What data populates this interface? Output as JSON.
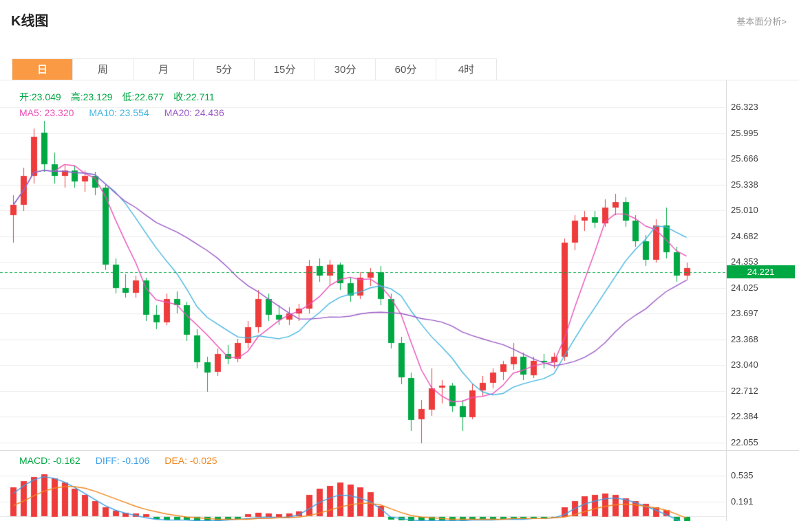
{
  "page": {
    "title": "K线图",
    "link_right": "基本面分析>"
  },
  "tabs": [
    {
      "label": "日",
      "active": true
    },
    {
      "label": "周",
      "active": false
    },
    {
      "label": "月",
      "active": false
    },
    {
      "label": "5分",
      "active": false
    },
    {
      "label": "15分",
      "active": false
    },
    {
      "label": "30分",
      "active": false
    },
    {
      "label": "60分",
      "active": false
    },
    {
      "label": "4时",
      "active": false
    }
  ],
  "kline": {
    "ohlc_legend": {
      "open": "开:23.049",
      "high": "高:23.129",
      "low": "低:22.677",
      "close": "收:22.711"
    },
    "ma_legend": {
      "ma5": "MA5: 23.320",
      "ma10": "MA10: 23.554",
      "ma20": "MA20: 24.436"
    },
    "current_price_label": "24.221",
    "y_axis_labels": [
      "26.323",
      "25.995",
      "25.666",
      "25.338",
      "25.010",
      "24.682",
      "24.353",
      "24.025",
      "23.697",
      "23.368",
      "23.040",
      "22.712",
      "22.384",
      "22.055"
    ]
  },
  "macd_panel": {
    "legend": {
      "macd": "MACD: -0.162",
      "diff": "DIFF: -0.106",
      "dea": "DEA: -0.025"
    },
    "y_axis_labels": [
      "0.535",
      "0.191"
    ]
  },
  "colors": {
    "up": "#ee3b3b",
    "down": "#00a843",
    "green_text": "#00a843",
    "ma5": "#ec4fb8",
    "ma10": "#45b5e0",
    "ma20": "#9b59c6",
    "diff": "#3d9fe8",
    "dea": "#f0871e",
    "grid": "#ececec",
    "accent_tab": "#fa9a45",
    "price_line": "#00a843"
  },
  "chart_data": [
    {
      "type": "candlestick",
      "title": "K线图 (日)",
      "y_ticks": [
        26.323,
        25.995,
        25.666,
        25.338,
        25.01,
        24.682,
        24.353,
        24.025,
        23.697,
        23.368,
        23.04,
        22.712,
        22.384,
        22.055
      ],
      "current_price": 24.221,
      "ma_periods": [
        5,
        10,
        20
      ],
      "legend_values": {
        "open": 23.049,
        "high": 23.129,
        "low": 22.677,
        "close": 22.711,
        "ma5": 23.32,
        "ma10": 23.554,
        "ma20": 24.436
      },
      "candles": [
        [
          24.95,
          25.2,
          24.6,
          25.08
        ],
        [
          25.08,
          25.55,
          25.0,
          25.45
        ],
        [
          25.45,
          26.05,
          25.35,
          25.95
        ],
        [
          26.0,
          26.15,
          25.5,
          25.6
        ],
        [
          25.6,
          25.75,
          25.35,
          25.45
        ],
        [
          25.45,
          25.6,
          25.3,
          25.52
        ],
        [
          25.52,
          25.58,
          25.3,
          25.38
        ],
        [
          25.38,
          25.52,
          25.25,
          25.45
        ],
        [
          25.45,
          25.5,
          25.2,
          25.3
        ],
        [
          25.3,
          25.35,
          24.25,
          24.32
        ],
        [
          24.32,
          24.4,
          23.95,
          24.02
        ],
        [
          24.02,
          24.2,
          23.9,
          23.96
        ],
        [
          23.96,
          24.18,
          23.9,
          24.12
        ],
        [
          24.12,
          24.15,
          23.6,
          23.68
        ],
        [
          23.68,
          23.8,
          23.5,
          23.58
        ],
        [
          23.58,
          23.95,
          23.55,
          23.88
        ],
        [
          23.88,
          23.98,
          23.7,
          23.8
        ],
        [
          23.8,
          23.85,
          23.35,
          23.42
        ],
        [
          23.42,
          23.5,
          23.0,
          23.08
        ],
        [
          23.08,
          23.15,
          22.7,
          22.95
        ],
        [
          22.95,
          23.25,
          22.9,
          23.18
        ],
        [
          23.18,
          23.3,
          23.05,
          23.12
        ],
        [
          23.12,
          23.38,
          23.08,
          23.32
        ],
        [
          23.32,
          23.6,
          23.25,
          23.52
        ],
        [
          23.52,
          24.0,
          23.45,
          23.88
        ],
        [
          23.88,
          23.95,
          23.6,
          23.68
        ],
        [
          23.68,
          23.8,
          23.55,
          23.62
        ],
        [
          23.62,
          23.78,
          23.55,
          23.7
        ],
        [
          23.7,
          23.82,
          23.6,
          23.76
        ],
        [
          23.76,
          24.38,
          23.7,
          24.3
        ],
        [
          24.3,
          24.4,
          24.1,
          24.18
        ],
        [
          24.18,
          24.38,
          24.05,
          24.32
        ],
        [
          24.32,
          24.35,
          24.0,
          24.08
        ],
        [
          24.08,
          24.15,
          23.85,
          23.92
        ],
        [
          23.92,
          24.22,
          23.88,
          24.15
        ],
        [
          24.15,
          24.28,
          24.05,
          24.22
        ],
        [
          24.22,
          24.3,
          23.8,
          23.88
        ],
        [
          23.88,
          23.95,
          23.25,
          23.32
        ],
        [
          23.32,
          23.4,
          22.8,
          22.88
        ],
        [
          22.88,
          22.95,
          22.2,
          22.35
        ],
        [
          22.35,
          22.6,
          22.05,
          22.48
        ],
        [
          22.48,
          23.0,
          22.4,
          22.75
        ],
        [
          22.75,
          22.85,
          22.55,
          22.78
        ],
        [
          22.78,
          22.82,
          22.45,
          22.52
        ],
        [
          22.52,
          22.6,
          22.2,
          22.38
        ],
        [
          22.38,
          22.8,
          22.35,
          22.72
        ],
        [
          22.72,
          22.9,
          22.65,
          22.82
        ],
        [
          22.82,
          23.0,
          22.75,
          22.95
        ],
        [
          22.95,
          23.1,
          22.85,
          23.05
        ],
        [
          23.05,
          23.32,
          22.98,
          23.15
        ],
        [
          23.15,
          23.2,
          22.85,
          22.92
        ],
        [
          22.92,
          23.15,
          22.88,
          23.1
        ],
        [
          23.1,
          23.18,
          23.0,
          23.08
        ],
        [
          23.08,
          23.2,
          23.0,
          23.15
        ],
        [
          23.15,
          24.65,
          23.1,
          24.6
        ],
        [
          24.6,
          24.95,
          24.5,
          24.88
        ],
        [
          24.88,
          25.0,
          24.75,
          24.92
        ],
        [
          24.92,
          25.0,
          24.78,
          24.85
        ],
        [
          24.85,
          25.15,
          24.8,
          25.05
        ],
        [
          25.05,
          25.22,
          24.95,
          25.12
        ],
        [
          25.12,
          25.18,
          24.8,
          24.88
        ],
        [
          24.88,
          24.95,
          24.55,
          24.62
        ],
        [
          24.62,
          24.7,
          24.3,
          24.38
        ],
        [
          24.38,
          24.9,
          24.35,
          24.82
        ],
        [
          24.82,
          25.05,
          24.4,
          24.48
        ],
        [
          24.48,
          24.55,
          24.1,
          24.18
        ],
        [
          24.18,
          24.35,
          24.12,
          24.28
        ]
      ]
    },
    {
      "type": "bar+line",
      "name": "MACD",
      "y_ticks": [
        0.535,
        0.191
      ],
      "last": {
        "macd": -0.162,
        "diff": -0.106,
        "dea": -0.025
      },
      "hist": [
        0.38,
        0.46,
        0.52,
        0.55,
        0.5,
        0.44,
        0.36,
        0.28,
        0.2,
        0.12,
        0.07,
        0.05,
        0.04,
        0.03,
        -0.03,
        -0.04,
        -0.04,
        -0.05,
        -0.05,
        -0.06,
        -0.05,
        -0.04,
        -0.03,
        0.03,
        0.05,
        0.04,
        0.03,
        0.04,
        0.06,
        0.28,
        0.36,
        0.4,
        0.44,
        0.42,
        0.38,
        0.32,
        0.14,
        -0.04,
        -0.05,
        -0.06,
        -0.06,
        -0.05,
        -0.05,
        -0.05,
        -0.05,
        -0.04,
        -0.04,
        -0.04,
        -0.03,
        -0.03,
        -0.03,
        -0.03,
        -0.03,
        -0.02,
        0.12,
        0.2,
        0.26,
        0.28,
        0.3,
        0.28,
        0.24,
        0.2,
        0.16,
        0.12,
        0.08,
        -0.06,
        -0.162
      ],
      "diff": [
        0.3,
        0.4,
        0.48,
        0.52,
        0.5,
        0.45,
        0.38,
        0.3,
        0.22,
        0.14,
        0.08,
        0.04,
        0.01,
        -0.02,
        -0.04,
        -0.05,
        -0.05,
        -0.05,
        -0.06,
        -0.06,
        -0.06,
        -0.05,
        -0.04,
        -0.03,
        -0.02,
        -0.01,
        -0.02,
        -0.01,
        0.02,
        0.1,
        0.18,
        0.24,
        0.28,
        0.27,
        0.24,
        0.19,
        0.1,
        -0.01,
        -0.03,
        -0.05,
        -0.06,
        -0.06,
        -0.06,
        -0.06,
        -0.06,
        -0.05,
        -0.05,
        -0.05,
        -0.04,
        -0.04,
        -0.04,
        -0.03,
        -0.03,
        -0.02,
        0.02,
        0.1,
        0.16,
        0.2,
        0.23,
        0.24,
        0.22,
        0.18,
        0.13,
        0.08,
        0.02,
        -0.04,
        -0.106
      ],
      "dea": [
        0.14,
        0.2,
        0.27,
        0.33,
        0.37,
        0.39,
        0.39,
        0.37,
        0.33,
        0.28,
        0.23,
        0.18,
        0.13,
        0.09,
        0.06,
        0.03,
        0.01,
        -0.01,
        -0.02,
        -0.03,
        -0.04,
        -0.04,
        -0.04,
        -0.04,
        -0.03,
        -0.03,
        -0.02,
        -0.02,
        -0.01,
        0.01,
        0.04,
        0.08,
        0.12,
        0.15,
        0.17,
        0.17,
        0.15,
        0.1,
        0.05,
        0.01,
        -0.01,
        -0.02,
        -0.03,
        -0.04,
        -0.04,
        -0.04,
        -0.04,
        -0.04,
        -0.04,
        -0.03,
        -0.03,
        -0.03,
        -0.03,
        -0.02,
        -0.01,
        0.02,
        0.06,
        0.1,
        0.13,
        0.15,
        0.16,
        0.15,
        0.13,
        0.11,
        0.08,
        0.03,
        -0.025
      ]
    }
  ]
}
